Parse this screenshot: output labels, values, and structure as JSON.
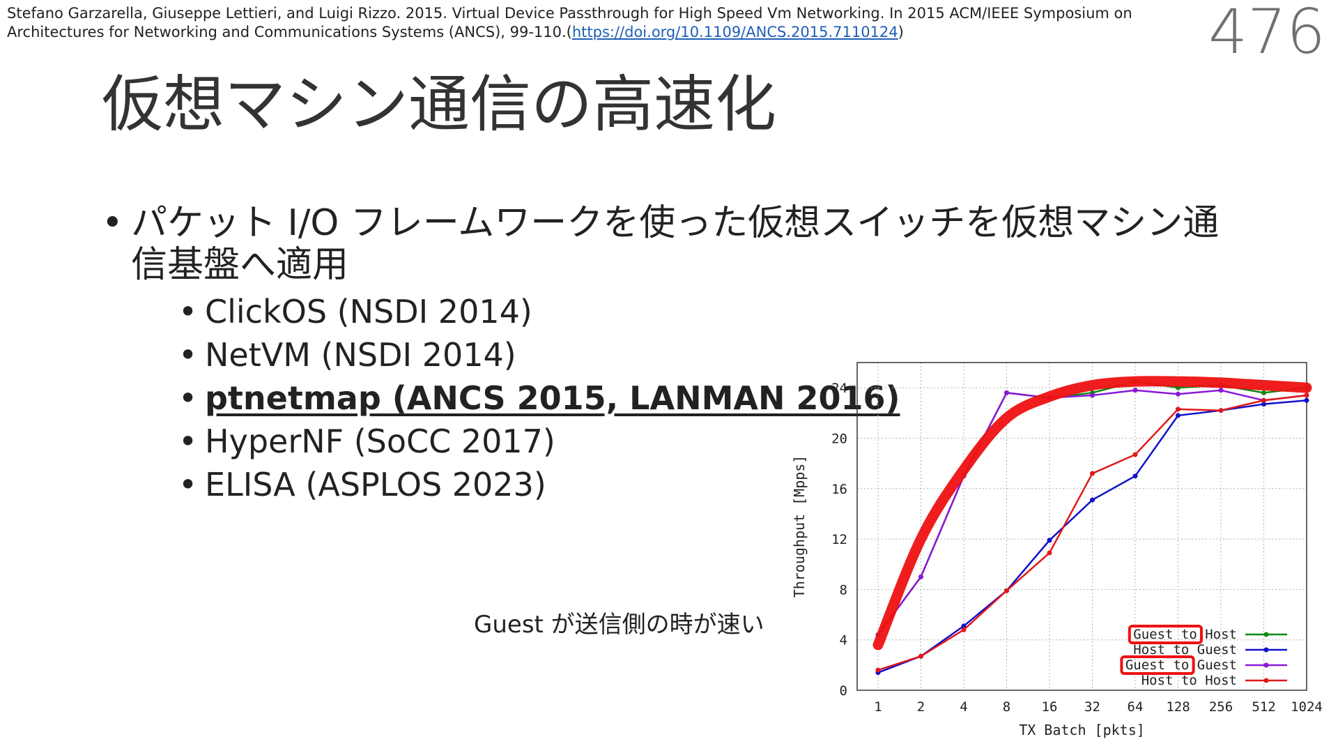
{
  "citation": {
    "text": "Stefano Garzarella, Giuseppe Lettieri, and Luigi Rizzo. 2015. Virtual Device Passthrough for High Speed Vm Networking. In 2015 ACM/IEEE Symposium on Architectures for Networking and Communications Systems (ANCS), 99-110.(",
    "link": "https://doi.org/10.1109/ANCS.2015.7110124",
    "close": ")"
  },
  "page_number": "476",
  "title": "仮想マシン通信の高速化",
  "bullet_main": "パケット I/O フレームワークを使った仮想スイッチを仮想マシン通信基盤へ適用",
  "bullet_dot": "•",
  "sub_bullets": [
    {
      "text": "ClickOS (NSDI 2014)",
      "highlight": false
    },
    {
      "text": "NetVM (NSDI 2014)",
      "highlight": false
    },
    {
      "text": "ptnetmap (ANCS 2015, LANMAN 2016)",
      "highlight": true
    },
    {
      "text": "HyperNF (SoCC 2017)",
      "highlight": false
    },
    {
      "text": "ELISA (ASPLOS 2023)",
      "highlight": false
    }
  ],
  "caption": "Guest が送信側の時が速い",
  "colors": {
    "annotation": "#ee1111",
    "grid": "#b0b0b0"
  },
  "chart_data": {
    "type": "line",
    "title": "",
    "xlabel": "TX Batch [pkts]",
    "ylabel": "Throughput [Mpps]",
    "x_scale": "log2",
    "categories": [
      "1",
      "2",
      "4",
      "8",
      "16",
      "32",
      "64",
      "128",
      "256",
      "512",
      "1024"
    ],
    "ylim": [
      0,
      26
    ],
    "yticks": [
      "0",
      "4",
      "8",
      "12",
      "16",
      "20",
      "24"
    ],
    "grid": true,
    "legend_position": "bottom-right",
    "series": [
      {
        "name": "Guest to Host",
        "color": "#118811",
        "values": [
          4.4,
          9.0,
          17.0,
          23.6,
          23.2,
          23.6,
          24.5,
          24.0,
          24.2,
          23.6,
          24.0
        ]
      },
      {
        "name": "Host to Guest",
        "color": "#1111cc",
        "values": [
          1.4,
          2.7,
          5.1,
          7.9,
          11.9,
          15.1,
          17.0,
          21.8,
          22.2,
          22.7,
          23.0
        ]
      },
      {
        "name": "Guest to Guest",
        "color": "#8a18d8",
        "values": [
          4.4,
          9.0,
          17.0,
          23.6,
          23.2,
          23.4,
          23.8,
          23.5,
          23.8,
          23.0,
          23.4
        ]
      },
      {
        "name": "Host to Host",
        "color": "#e01919",
        "values": [
          1.6,
          2.7,
          4.8,
          7.9,
          10.9,
          17.2,
          18.7,
          22.3,
          22.2,
          23.0,
          23.4
        ]
      }
    ],
    "annotation_trend": {
      "color": "#ee1111",
      "values": [
        3.6,
        12.0,
        17.5,
        21.6,
        23.3,
        24.2,
        24.5,
        24.5,
        24.4,
        24.2,
        24.0
      ]
    },
    "legend_highlights": [
      "Guest to",
      "Guest to"
    ]
  }
}
